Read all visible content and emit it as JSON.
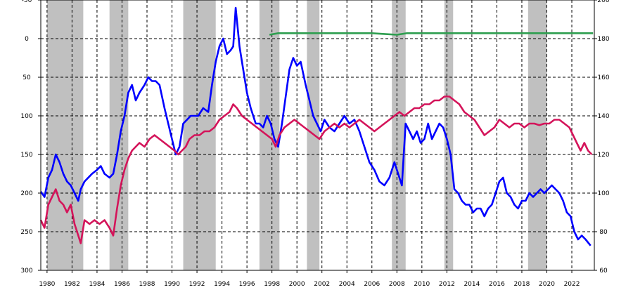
{
  "chart_data": {
    "type": "line",
    "title": "",
    "xlabel": "",
    "ylabel": "",
    "grid": true,
    "xlim": [
      1979.5,
      2023.8
    ],
    "x_ticks": [
      1980,
      1982,
      1984,
      1986,
      1988,
      1990,
      1992,
      1994,
      1996,
      1998,
      2000,
      2002,
      2004,
      2006,
      2008,
      2010,
      2012,
      2014,
      2016,
      2018,
      2020,
      2022
    ],
    "y_left": {
      "lim": [
        -50,
        300
      ],
      "inverted": true,
      "ticks": [
        -50,
        0,
        50,
        100,
        150,
        200,
        250,
        300
      ]
    },
    "y_right": {
      "lim": [
        60,
        200
      ],
      "inverted": false,
      "ticks": [
        60,
        80,
        100,
        120,
        140,
        160,
        180,
        200
      ]
    },
    "shaded_periods": [
      [
        1980.0,
        1982.9
      ],
      [
        1985.0,
        1986.5
      ],
      [
        1990.9,
        1993.5
      ],
      [
        1997.0,
        1998.6
      ],
      [
        2000.8,
        2001.8
      ],
      [
        2007.6,
        2008.7
      ],
      [
        2011.8,
        2012.5
      ],
      [
        2018.5,
        2020.0
      ]
    ],
    "colors": {
      "blue": "#0000ff",
      "red": "#d4145a",
      "green": "#2e9e4f",
      "shade": "#c0c0c0"
    },
    "series": [
      {
        "color": "blue",
        "axis": "left",
        "x": [
          1979.5,
          1979.8,
          1980.1,
          1980.4,
          1980.7,
          1981.0,
          1981.3,
          1981.6,
          1981.9,
          1982.2,
          1982.5,
          1982.7,
          1983.0,
          1983.3,
          1983.6,
          1984.0,
          1984.3,
          1984.6,
          1985.0,
          1985.3,
          1985.6,
          1985.9,
          1986.2,
          1986.5,
          1986.8,
          1987.1,
          1987.4,
          1987.8,
          1988.1,
          1988.4,
          1988.7,
          1989.0,
          1989.4,
          1989.7,
          1990.0,
          1990.3,
          1990.6,
          1990.9,
          1991.2,
          1991.5,
          1991.8,
          1992.1,
          1992.5,
          1992.9,
          1993.2,
          1993.5,
          1993.8,
          1994.1,
          1994.4,
          1994.7,
          1994.9,
          1995.1,
          1995.4,
          1995.7,
          1996.0,
          1996.3,
          1996.7,
          1997.0,
          1997.3,
          1997.6,
          1997.9,
          1998.2,
          1998.5,
          1998.8,
          1999.1,
          1999.4,
          1999.7,
          2000.0,
          2000.3,
          2000.7,
          2001.0,
          2001.3,
          2001.6,
          2001.9,
          2002.2,
          2002.6,
          2003.0,
          2003.4,
          2003.8,
          2004.2,
          2004.6,
          2005.0,
          2005.4,
          2005.8,
          2006.2,
          2006.6,
          2007.0,
          2007.4,
          2007.8,
          2008.1,
          2008.4,
          2008.7,
          2009.0,
          2009.3,
          2009.6,
          2009.9,
          2010.2,
          2010.5,
          2010.8,
          2011.1,
          2011.4,
          2011.7,
          2012.0,
          2012.3,
          2012.6,
          2012.9,
          2013.2,
          2013.5,
          2013.8,
          2014.1,
          2014.4,
          2014.7,
          2015.0,
          2015.3,
          2015.6,
          2015.9,
          2016.2,
          2016.5,
          2016.8,
          2017.1,
          2017.4,
          2017.7,
          2018.0,
          2018.3,
          2018.6,
          2018.9,
          2019.2,
          2019.5,
          2019.8,
          2020.1,
          2020.4,
          2020.7,
          2021.0,
          2021.3,
          2021.6,
          2021.9,
          2022.2,
          2022.5,
          2022.8,
          2023.1,
          2023.5
        ],
        "values": [
          198,
          205,
          180,
          170,
          150,
          160,
          175,
          185,
          190,
          200,
          210,
          195,
          185,
          180,
          175,
          170,
          165,
          175,
          180,
          175,
          150,
          120,
          100,
          70,
          60,
          80,
          70,
          60,
          50,
          55,
          55,
          60,
          90,
          110,
          130,
          150,
          140,
          110,
          105,
          100,
          100,
          100,
          90,
          95,
          60,
          30,
          10,
          0,
          20,
          15,
          10,
          -40,
          10,
          40,
          70,
          90,
          110,
          110,
          115,
          100,
          110,
          130,
          140,
          110,
          75,
          40,
          25,
          35,
          30,
          60,
          80,
          100,
          110,
          120,
          105,
          115,
          120,
          110,
          100,
          110,
          105,
          120,
          140,
          160,
          170,
          185,
          190,
          180,
          160,
          175,
          190,
          110,
          120,
          130,
          120,
          135,
          130,
          110,
          130,
          120,
          110,
          115,
          130,
          150,
          195,
          200,
          210,
          215,
          215,
          225,
          220,
          220,
          230,
          220,
          215,
          200,
          185,
          180,
          200,
          205,
          215,
          220,
          210,
          210,
          200,
          205,
          200,
          195,
          200,
          195,
          190,
          195,
          200,
          210,
          225,
          230,
          250,
          260,
          255,
          260,
          268
        ]
      },
      {
        "color": "red",
        "axis": "left",
        "x": [
          1979.5,
          1979.8,
          1980.1,
          1980.4,
          1980.7,
          1981.0,
          1981.3,
          1981.6,
          1981.9,
          1982.2,
          1982.5,
          1982.7,
          1983.0,
          1983.4,
          1983.8,
          1984.2,
          1984.6,
          1985.0,
          1985.3,
          1985.6,
          1985.9,
          1986.2,
          1986.5,
          1986.8,
          1987.1,
          1987.4,
          1987.8,
          1988.2,
          1988.6,
          1989.0,
          1989.4,
          1989.8,
          1990.2,
          1990.5,
          1990.8,
          1991.1,
          1991.4,
          1991.8,
          1992.2,
          1992.6,
          1993.0,
          1993.4,
          1993.8,
          1994.2,
          1994.6,
          1994.9,
          1995.2,
          1995.6,
          1996.0,
          1996.4,
          1996.8,
          1997.2,
          1997.6,
          1998.0,
          1998.3,
          1998.6,
          1999.0,
          1999.4,
          1999.8,
          2000.2,
          2000.6,
          2001.0,
          2001.4,
          2001.8,
          2002.2,
          2002.6,
          2003.0,
          2003.4,
          2003.8,
          2004.2,
          2004.6,
          2005.0,
          2005.4,
          2005.8,
          2006.2,
          2006.6,
          2007.0,
          2007.4,
          2007.8,
          2008.2,
          2008.6,
          2009.0,
          2009.4,
          2009.8,
          2010.2,
          2010.6,
          2011.0,
          2011.4,
          2011.8,
          2012.2,
          2012.6,
          2013.0,
          2013.4,
          2013.8,
          2014.2,
          2014.6,
          2015.0,
          2015.4,
          2015.8,
          2016.2,
          2016.6,
          2017.0,
          2017.4,
          2017.8,
          2018.2,
          2018.6,
          2019.0,
          2019.4,
          2019.8,
          2020.2,
          2020.6,
          2021.0,
          2021.4,
          2021.8,
          2022.1,
          2022.4,
          2022.7,
          2023.0,
          2023.3,
          2023.6
        ],
        "values": [
          235,
          245,
          215,
          205,
          195,
          210,
          215,
          225,
          215,
          240,
          255,
          265,
          235,
          240,
          235,
          240,
          235,
          245,
          255,
          220,
          190,
          170,
          155,
          145,
          140,
          135,
          140,
          130,
          125,
          130,
          135,
          140,
          145,
          150,
          145,
          140,
          130,
          125,
          125,
          120,
          120,
          115,
          105,
          100,
          95,
          85,
          90,
          100,
          105,
          110,
          115,
          120,
          125,
          130,
          140,
          125,
          115,
          110,
          105,
          110,
          115,
          120,
          125,
          130,
          120,
          115,
          110,
          115,
          110,
          115,
          110,
          105,
          110,
          115,
          120,
          115,
          110,
          105,
          100,
          95,
          100,
          95,
          90,
          90,
          85,
          85,
          80,
          80,
          75,
          75,
          80,
          85,
          95,
          100,
          105,
          115,
          125,
          120,
          115,
          105,
          110,
          115,
          110,
          110,
          115,
          110,
          110,
          112,
          110,
          110,
          105,
          105,
          110,
          115,
          125,
          135,
          145,
          135,
          145,
          150
        ]
      },
      {
        "color": "green",
        "axis": "left",
        "x": [
          1997.8,
          1998.5,
          2000.0,
          2002.0,
          2004.0,
          2006.0,
          2007.0,
          2008.0,
          2008.8,
          2010.0,
          2012.0,
          2014.0,
          2016.0,
          2018.0,
          2020.0,
          2022.0,
          2023.7
        ],
        "values": [
          -5,
          -7,
          -7,
          -7,
          -7,
          -7,
          -6,
          -5,
          -7,
          -7,
          -7,
          -7,
          -7,
          -7,
          -7,
          -7,
          -7
        ]
      }
    ]
  }
}
